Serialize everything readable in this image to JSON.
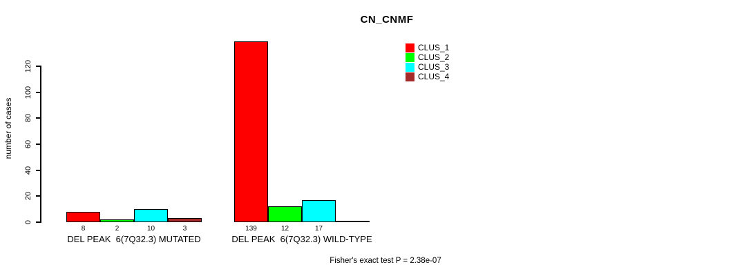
{
  "chart_data": {
    "type": "bar",
    "title": "CN_CNMF",
    "xlabel": "",
    "ylabel": "number of cases",
    "ylim": [
      0,
      139
    ],
    "yticks": [
      0,
      20,
      40,
      60,
      80,
      100,
      120
    ],
    "grid": false,
    "legend_position": "top-right",
    "categories": [
      "DEL PEAK  6(7Q32.3) MUTATED",
      "DEL PEAK  6(7Q32.3) WILD-TYPE"
    ],
    "series": [
      {
        "name": "CLUS_1",
        "color": "#FF0000",
        "values": [
          8,
          139
        ]
      },
      {
        "name": "CLUS_2",
        "color": "#00FF00",
        "values": [
          2,
          12
        ]
      },
      {
        "name": "CLUS_3",
        "color": "#00FFFF",
        "values": [
          10,
          17
        ]
      },
      {
        "name": "CLUS_4",
        "color": "#A52A2A",
        "values": [
          3,
          0
        ]
      }
    ],
    "bar_value_labels": [
      "8",
      "2",
      "10",
      "3",
      "139",
      "12",
      "17"
    ],
    "annotation": "Fisher's exact test P = 2.38e-07"
  }
}
